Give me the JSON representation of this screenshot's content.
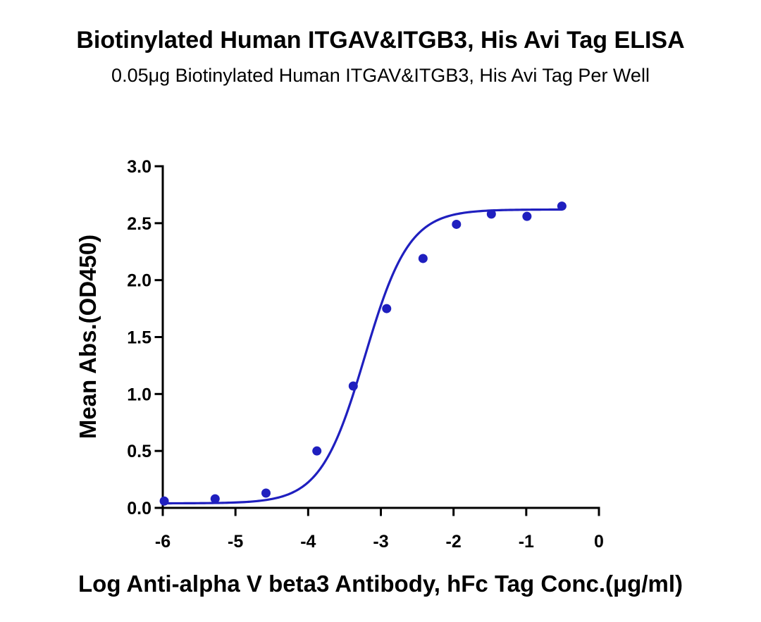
{
  "chart_data": {
    "type": "scatter",
    "title": "Biotinylated Human ITGAV&ITGB3, His Avi Tag ELISA",
    "subtitle": "0.05μg Biotinylated Human ITGAV&ITGB3, His Avi Tag Per Well",
    "xlabel": "Log Anti-alpha V beta3 Antibody, hFc Tag Conc.(μg/ml)",
    "ylabel": "Mean Abs.(OD450)",
    "xlim": [
      -6,
      0
    ],
    "ylim": [
      0,
      3.0
    ],
    "x_ticks": [
      "-6",
      "-5",
      "-4",
      "-3",
      "-2",
      "-1",
      "0"
    ],
    "y_ticks": [
      "0.0",
      "0.5",
      "1.0",
      "1.5",
      "2.0",
      "2.5",
      "3.0"
    ],
    "grid": false,
    "series": [
      {
        "color": "#1f1fbf",
        "x": [
          -5.98,
          -5.28,
          -4.58,
          -3.88,
          -3.38,
          -2.92,
          -2.42,
          -1.96,
          -1.48,
          -0.99,
          -0.51
        ],
        "y": [
          0.06,
          0.08,
          0.13,
          0.5,
          1.07,
          1.75,
          2.19,
          2.49,
          2.58,
          2.56,
          2.65
        ]
      }
    ],
    "fit_curve": {
      "type": "4PL",
      "color": "#1f1fbf",
      "bottom": 0.04,
      "top": 2.62,
      "log_ec50": -3.22,
      "hill": 0.92
    }
  }
}
